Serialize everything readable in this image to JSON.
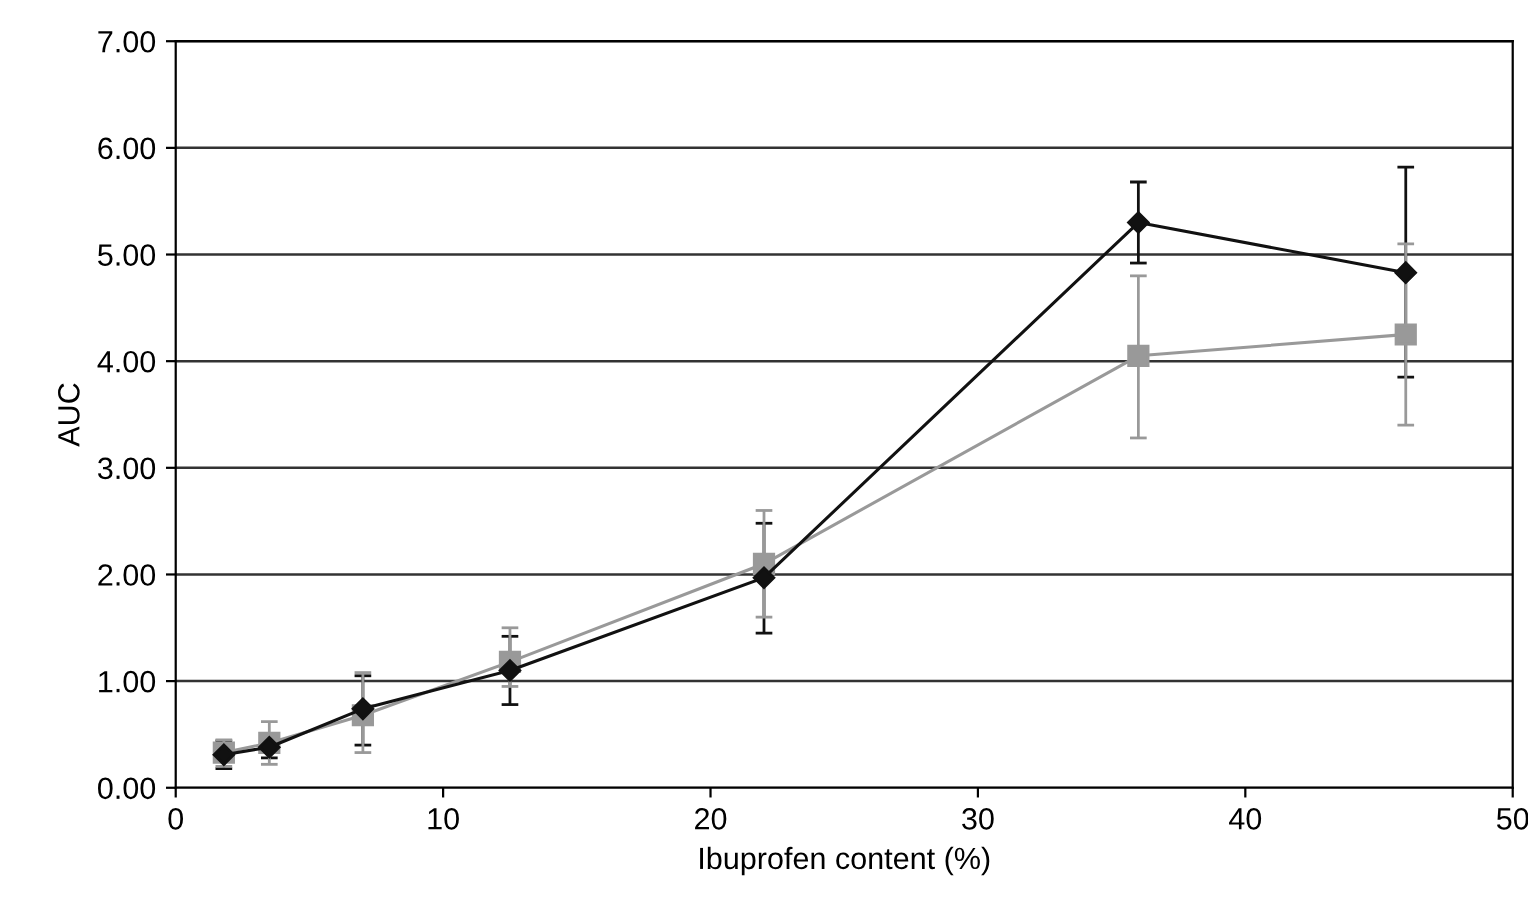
{
  "chart_data": {
    "type": "line",
    "xlabel": "Ibuprofen content (%)",
    "ylabel": "AUC",
    "xlim": [
      0,
      50
    ],
    "xticks": [
      0,
      10,
      20,
      30,
      40,
      50
    ],
    "ylim": [
      0,
      7
    ],
    "yticks": [
      {
        "value": 0,
        "label": "0.00"
      },
      {
        "value": 1,
        "label": "1.00"
      },
      {
        "value": 2,
        "label": "2.00"
      },
      {
        "value": 3,
        "label": "3.00"
      },
      {
        "value": 4,
        "label": "4.00"
      },
      {
        "value": 5,
        "label": "5.00"
      },
      {
        "value": 6,
        "label": "6.00"
      },
      {
        "value": 7,
        "label": "7.00"
      }
    ],
    "grid": "y",
    "x": [
      1.8,
      3.5,
      7,
      12.5,
      22,
      36,
      46
    ],
    "series": [
      {
        "color": "#999999",
        "marker": "square",
        "values": [
          0.33,
          0.42,
          0.68,
          1.18,
          2.1,
          4.05,
          4.25
        ],
        "errors": [
          [
            0.2,
            0.45
          ],
          [
            0.22,
            0.62
          ],
          [
            0.33,
            1.08
          ],
          [
            0.95,
            1.5
          ],
          [
            1.6,
            2.6
          ],
          [
            3.28,
            4.8
          ],
          [
            3.4,
            5.1
          ]
        ]
      },
      {
        "color": "#111111",
        "marker": "diamond",
        "values": [
          0.31,
          0.38,
          0.74,
          1.1,
          1.97,
          5.3,
          4.83
        ],
        "errors": [
          [
            0.18,
            0.44
          ],
          [
            0.28,
            0.5
          ],
          [
            0.4,
            1.05
          ],
          [
            0.78,
            1.42
          ],
          [
            1.45,
            2.48
          ],
          [
            4.92,
            5.68
          ],
          [
            3.85,
            5.82
          ]
        ]
      }
    ]
  }
}
